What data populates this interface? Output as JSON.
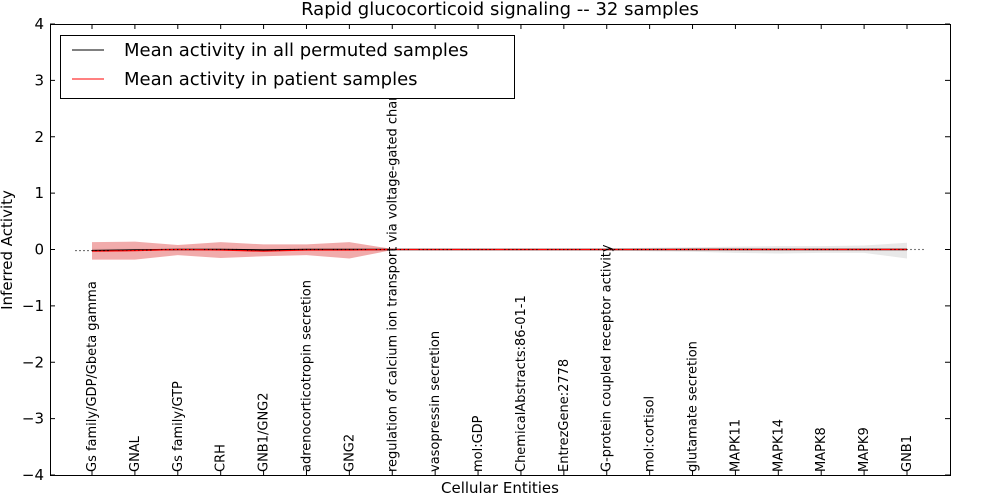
{
  "chart_data": {
    "type": "line",
    "title": "Rapid glucocorticoid signaling -- 32 samples",
    "xlabel": "Cellular Entities",
    "ylabel": "Inferred Activity",
    "ylim": [
      -4,
      4
    ],
    "yticks": [
      4,
      3,
      2,
      1,
      0,
      -1,
      -2,
      -3,
      -4
    ],
    "ytick_labels": [
      "4",
      "3",
      "2",
      "1",
      "0",
      "−1",
      "−2",
      "−3",
      "−4"
    ],
    "categories": [
      "Gs family/GDP/Gbeta gamma",
      "GNAL",
      "Gs family/GTP",
      "CRH",
      "GNB1/GNG2",
      "adrenocorticotropin secretion",
      "GNG2",
      "regulation of calcium ion transport via voltage-gated channel",
      "vasopressin secretion",
      "mol:GDP",
      "ChemicalAbstracts:86-01-1",
      "EntrezGene:2778",
      "G-protein coupled receptor activity",
      "mol:cortisol",
      "glutamate secretion",
      "MAPK11",
      "MAPK14",
      "MAPK8",
      "MAPK9",
      "GNB1"
    ],
    "legend_position": "top-left",
    "series": [
      {
        "name": "Mean activity in all permuted samples",
        "color": "#000000",
        "values": [
          -0.02,
          -0.01,
          0,
          0,
          -0.01,
          0,
          0,
          0,
          0,
          0,
          0,
          0,
          0,
          0,
          0,
          0,
          0,
          0,
          0,
          0
        ],
        "band_upper": [
          0.02,
          0.02,
          0.02,
          0.02,
          0.02,
          0.02,
          0.02,
          0.01,
          0.01,
          0.01,
          0.01,
          0.01,
          0.02,
          0.03,
          0.04,
          0.05,
          0.06,
          0.06,
          0.07,
          0.12
        ],
        "band_lower": [
          -0.02,
          -0.02,
          -0.02,
          -0.02,
          -0.02,
          -0.02,
          -0.02,
          -0.01,
          -0.01,
          -0.01,
          -0.01,
          -0.01,
          -0.02,
          -0.03,
          -0.04,
          -0.06,
          -0.07,
          -0.06,
          -0.06,
          -0.16
        ]
      },
      {
        "name": "Mean activity in patient samples",
        "color": "#ff0000",
        "values": [
          -0.03,
          -0.02,
          0,
          -0.01,
          -0.03,
          -0.01,
          -0.01,
          0,
          0,
          0,
          0,
          0,
          0,
          0,
          0,
          0,
          0,
          0,
          0,
          0
        ],
        "band_upper": [
          0.13,
          0.14,
          0.08,
          0.13,
          0.09,
          0.09,
          0.13,
          0.01,
          0.01,
          0.01,
          0.01,
          0.01,
          0.01,
          0.01,
          0.02,
          0.02,
          0.02,
          0.02,
          0.02,
          0.02
        ],
        "band_lower": [
          -0.18,
          -0.18,
          -0.1,
          -0.15,
          -0.12,
          -0.1,
          -0.16,
          -0.01,
          -0.01,
          -0.01,
          -0.01,
          -0.01,
          -0.01,
          -0.01,
          -0.01,
          -0.01,
          -0.01,
          -0.01,
          -0.01,
          -0.01
        ]
      }
    ]
  },
  "colors": {
    "patient_band": "#ec8f8f",
    "permuted_band": "#d9d9d9"
  }
}
